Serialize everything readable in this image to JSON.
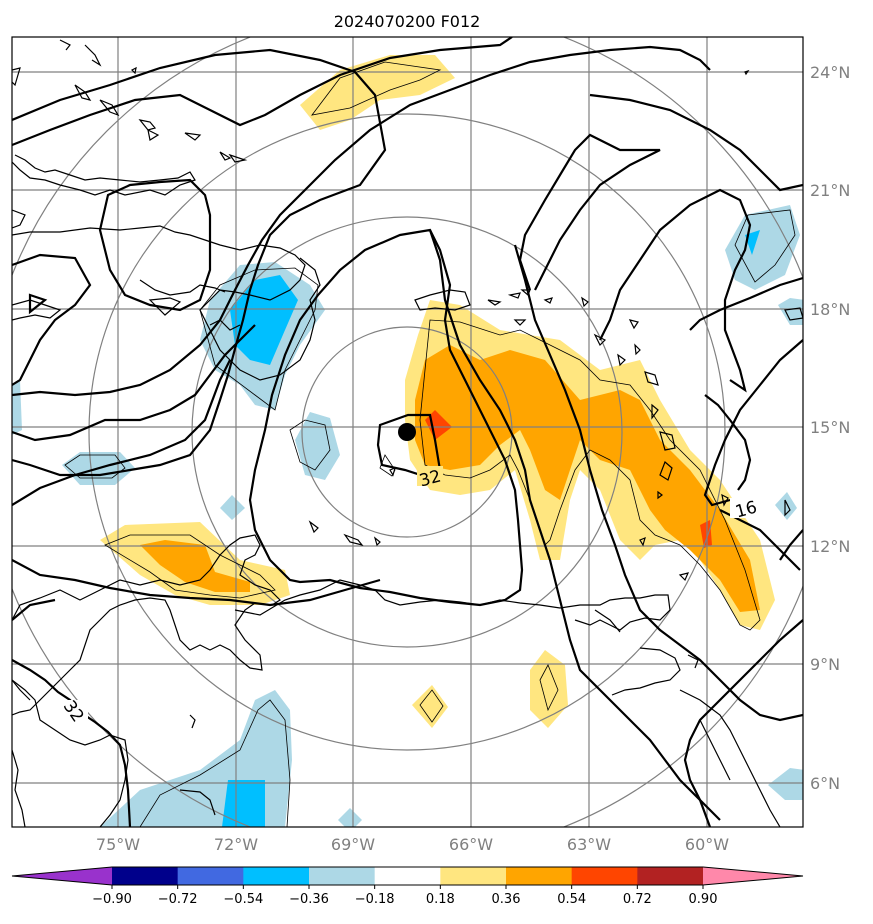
{
  "title": "2024070200 F012",
  "map": {
    "lat_labels": [
      "24°N",
      "21°N",
      "18°N",
      "15°N",
      "12°N",
      "9°N",
      "6°N"
    ],
    "lon_labels": [
      "75°W",
      "72°W",
      "69°W",
      "66°W",
      "63°W",
      "60°W"
    ],
    "contour_labels": [
      "32",
      "16",
      "32"
    ],
    "storm_center": {
      "lat": 14.9,
      "lon": -67.8
    }
  },
  "colorbar": {
    "ticks": [
      "−0.90",
      "−0.72",
      "−0.54",
      "−0.36",
      "−0.18",
      "0.18",
      "0.36",
      "0.54",
      "0.72",
      "0.90"
    ],
    "colors": [
      "#9932cc",
      "#00008b",
      "#4169e1",
      "#00bfff",
      "#add8e6",
      "#ffffff",
      "#ffe680",
      "#ffa500",
      "#ff4500",
      "#b22222",
      "#ff88aa"
    ]
  },
  "colors": {
    "coast": "#000000",
    "grid": "#808080",
    "range_rings": "#808080",
    "contour": "#000000"
  }
}
